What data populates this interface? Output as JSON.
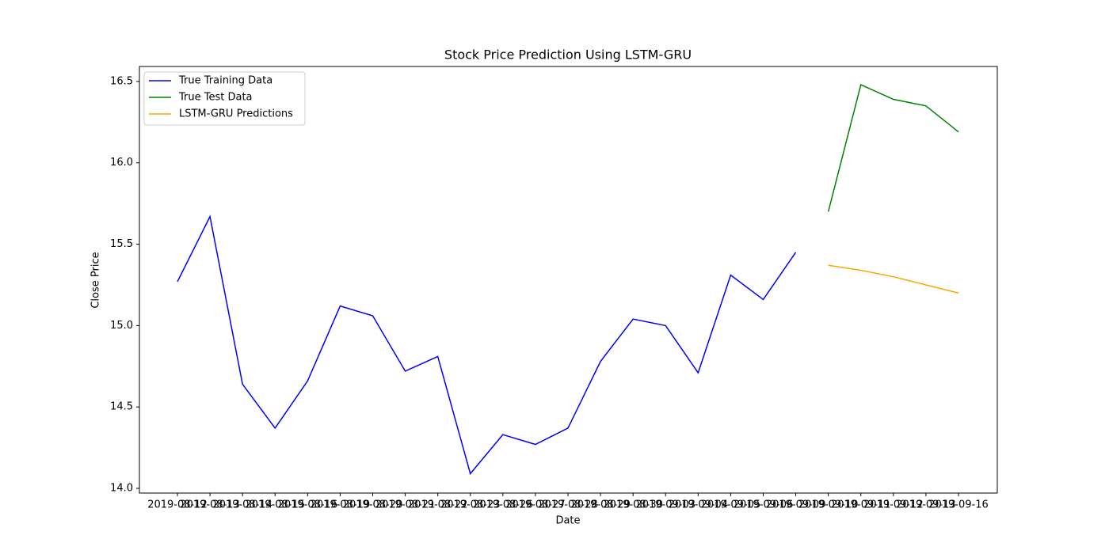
{
  "chart_data": {
    "type": "line",
    "title": "Stock Price Prediction Using LSTM-GRU",
    "x_label": "Date",
    "y_label": "Close Price",
    "categories": [
      "2019-08-12",
      "2019-08-13",
      "2019-08-14",
      "2019-08-15",
      "2019-08-16",
      "2019-08-19",
      "2019-08-20",
      "2019-08-21",
      "2019-08-22",
      "2019-08-23",
      "2019-08-26",
      "2019-08-27",
      "2019-08-28",
      "2019-08-29",
      "2019-08-30",
      "2019-09-03",
      "2019-09-04",
      "2019-09-05",
      "2019-09-06",
      "2019-09-09",
      "2019-09-10",
      "2019-09-11",
      "2019-09-12",
      "2019-09-13",
      "2019-09-16"
    ],
    "series": [
      {
        "name": "True Training Data",
        "color": "#0000ff",
        "values": [
          15.27,
          15.67,
          14.64,
          14.37,
          14.66,
          15.12,
          15.06,
          14.72,
          14.81,
          14.09,
          14.33,
          14.27,
          14.37,
          14.78,
          15.04,
          15.0,
          14.71,
          15.31,
          15.16,
          15.45,
          null,
          null,
          null,
          null,
          null
        ]
      },
      {
        "name": "True Test Data",
        "color": "#008000",
        "values": [
          null,
          null,
          null,
          null,
          null,
          null,
          null,
          null,
          null,
          null,
          null,
          null,
          null,
          null,
          null,
          null,
          null,
          null,
          null,
          null,
          15.7,
          16.48,
          16.39,
          16.35,
          16.19
        ]
      },
      {
        "name": "LSTM-GRU Predictions",
        "color": "#ffa500",
        "values": [
          null,
          null,
          null,
          null,
          null,
          null,
          null,
          null,
          null,
          null,
          null,
          null,
          null,
          null,
          null,
          null,
          null,
          null,
          null,
          null,
          15.37,
          15.34,
          15.3,
          15.25,
          15.2
        ]
      }
    ],
    "ylim": [
      13.971,
      16.592
    ],
    "yticks": [
      {
        "value": 14,
        "label": "14.0"
      },
      14.5,
      {
        "value": 15,
        "label": "15.0"
      },
      15.5,
      {
        "value": 16,
        "label": "16.0"
      },
      16.5
    ],
    "legend": "upper left",
    "grid": false
  }
}
